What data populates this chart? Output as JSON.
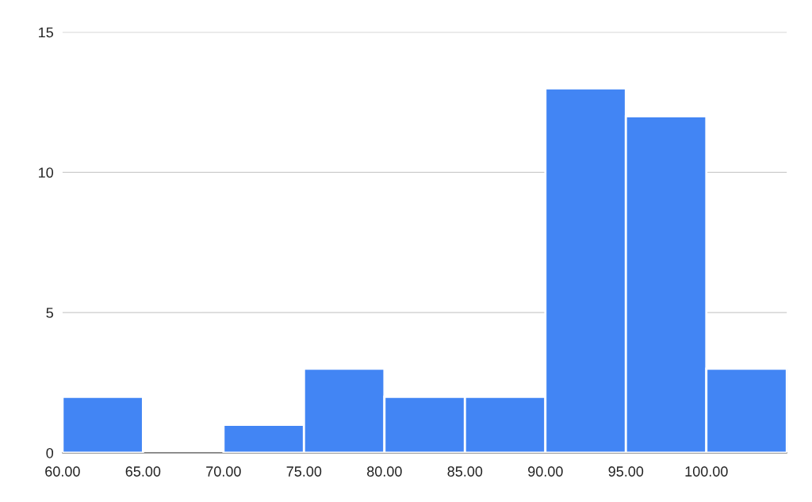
{
  "chart_data": {
    "type": "histogram",
    "bins": [
      60,
      65,
      70,
      75,
      80,
      85,
      90,
      95,
      100,
      105
    ],
    "values": [
      2,
      0,
      1,
      3,
      2,
      2,
      13,
      12,
      3
    ],
    "color": "#4285f4",
    "xlim": [
      60,
      105
    ],
    "xticks": [
      {
        "value": 60,
        "label": "60.00"
      },
      {
        "value": 65,
        "label": "65.00"
      },
      {
        "value": 70,
        "label": "70.00"
      },
      {
        "value": 75,
        "label": "75.00"
      },
      {
        "value": 80,
        "label": "80.00"
      },
      {
        "value": 85,
        "label": "85.00"
      },
      {
        "value": 90,
        "label": "90.00"
      },
      {
        "value": 95,
        "label": "95.00"
      },
      {
        "value": 100,
        "label": "100.00"
      }
    ],
    "ylim": [
      0,
      15
    ],
    "yticks": [
      0,
      5,
      10,
      15
    ],
    "grid": "y"
  }
}
